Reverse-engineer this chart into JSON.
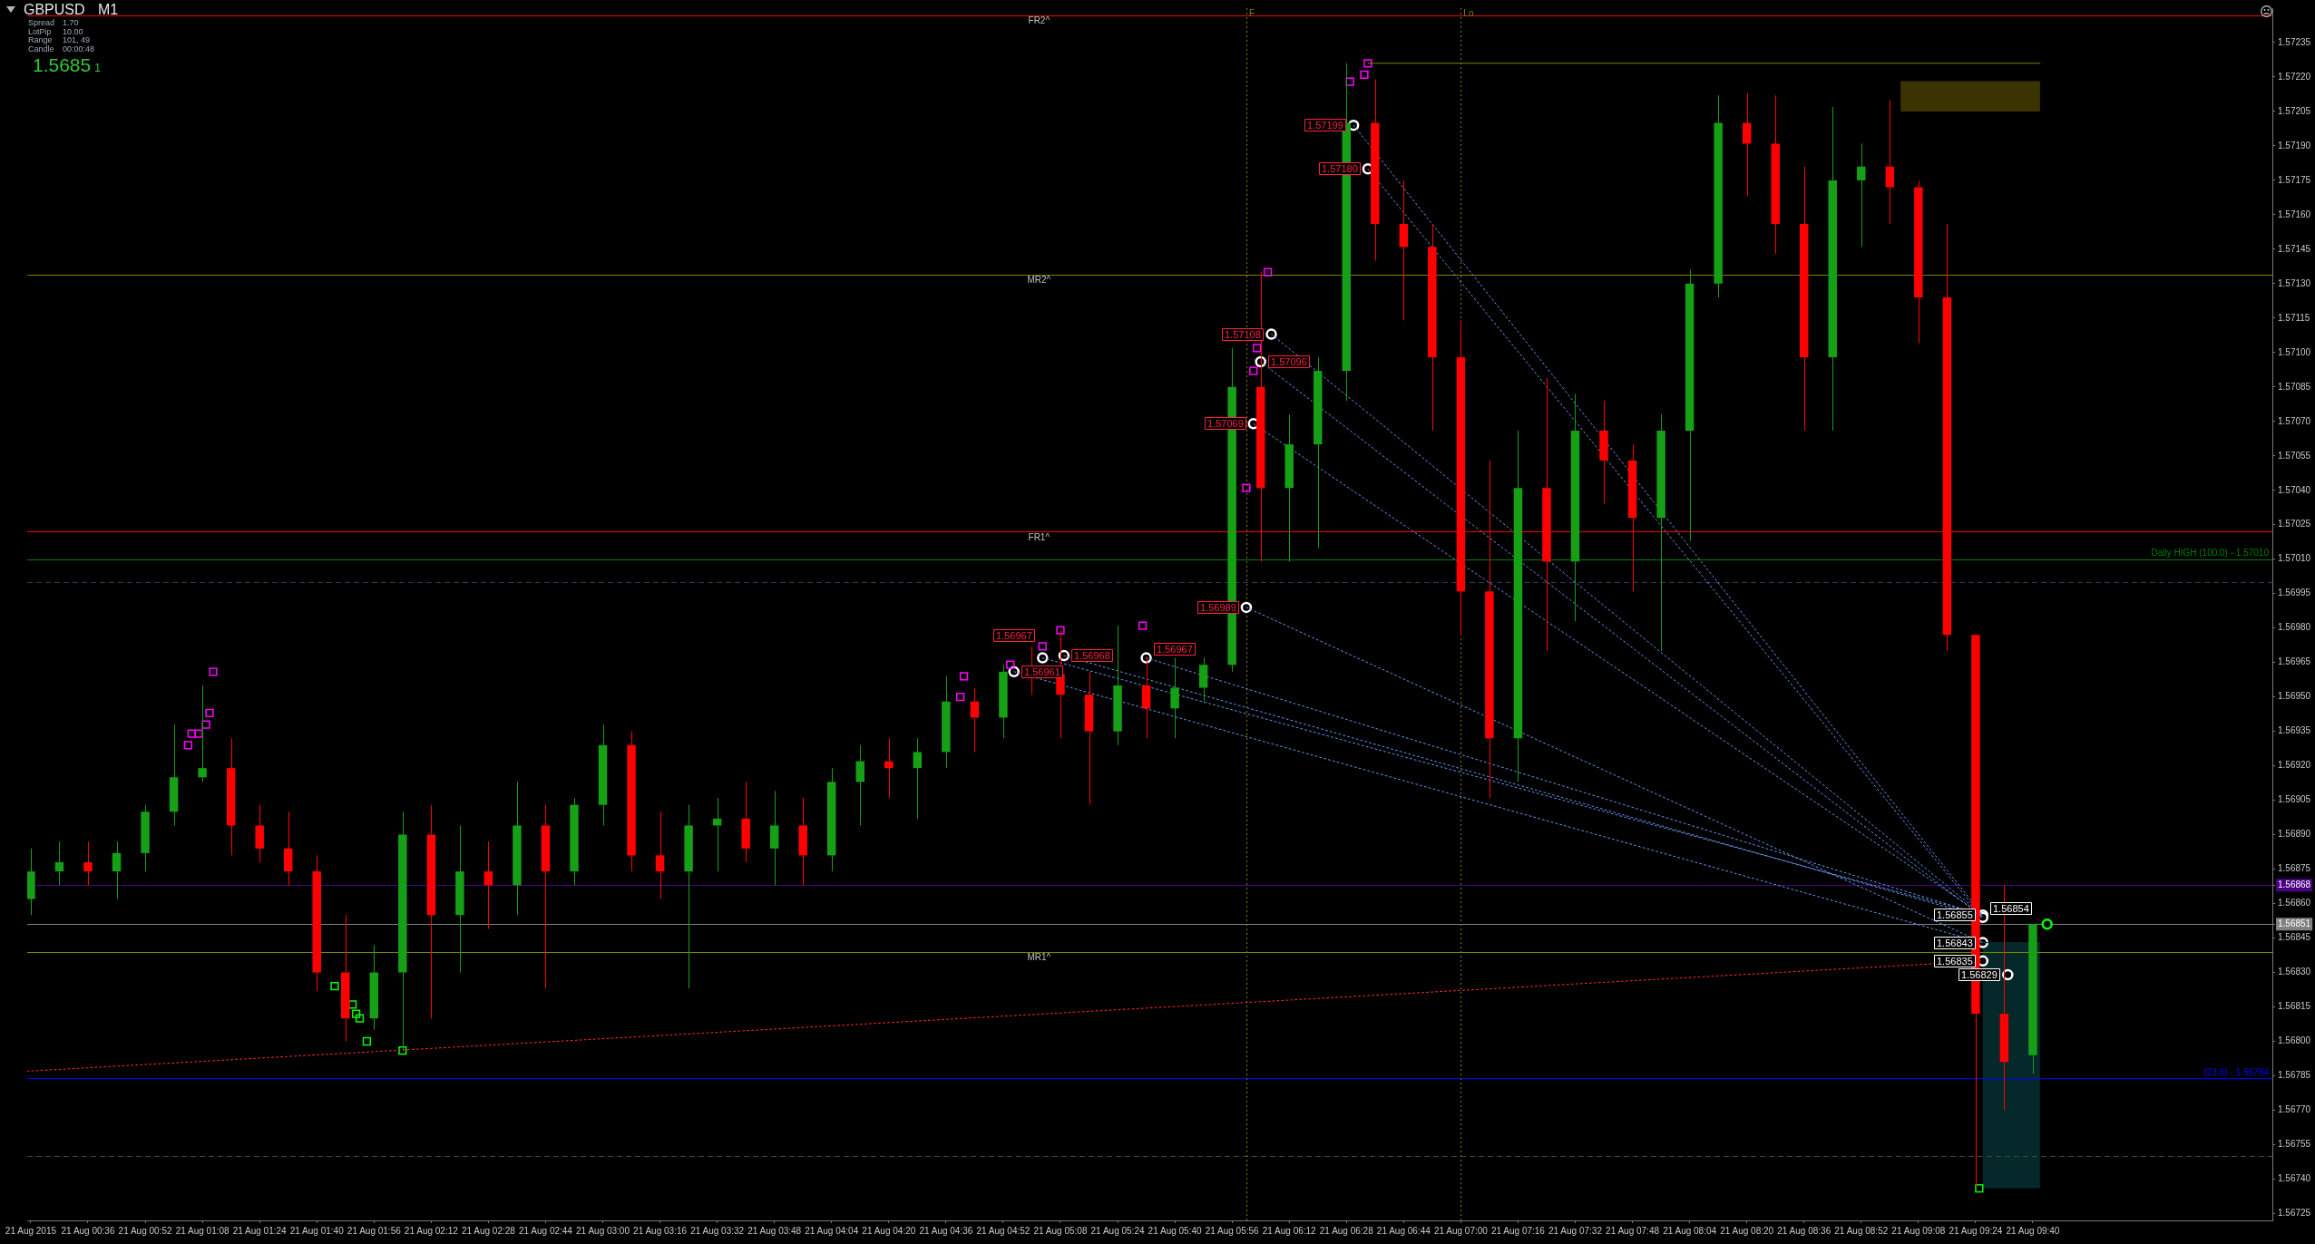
{
  "chart_data": {
    "type": "candlestick",
    "title": "GBPUSD M1",
    "xlim": [
      "2015-08-21T00:19",
      "2015-08-21T10:47"
    ],
    "xticks": [
      {
        "value": "2015-08-21T00:20",
        "label": "21 Aug 2015"
      },
      {
        "value": "2015-08-21T00:36",
        "label": "21 Aug 00:36"
      },
      {
        "value": "2015-08-21T00:52",
        "label": "21 Aug 00:52"
      },
      {
        "value": "2015-08-21T01:08",
        "label": "21 Aug 01:08"
      },
      {
        "value": "2015-08-21T01:24",
        "label": "21 Aug 01:24"
      },
      {
        "value": "2015-08-21T01:40",
        "label": "21 Aug 01:40"
      },
      {
        "value": "2015-08-21T01:56",
        "label": "21 Aug 01:56"
      },
      {
        "value": "2015-08-21T02:12",
        "label": "21 Aug 02:12"
      },
      {
        "value": "2015-08-21T02:28",
        "label": "21 Aug 02:28"
      },
      {
        "value": "2015-08-21T02:44",
        "label": "21 Aug 02:44"
      },
      {
        "value": "2015-08-21T03:00",
        "label": "21 Aug 03:00"
      },
      {
        "value": "2015-08-21T03:16",
        "label": "21 Aug 03:16"
      },
      {
        "value": "2015-08-21T03:32",
        "label": "21 Aug 03:32"
      },
      {
        "value": "2015-08-21T03:48",
        "label": "21 Aug 03:48"
      },
      {
        "value": "2015-08-21T04:04",
        "label": "21 Aug 04:04"
      },
      {
        "value": "2015-08-21T04:20",
        "label": "21 Aug 04:20"
      },
      {
        "value": "2015-08-21T04:36",
        "label": "21 Aug 04:36"
      },
      {
        "value": "2015-08-21T04:52",
        "label": "21 Aug 04:52"
      },
      {
        "value": "2015-08-21T05:08",
        "label": "21 Aug 05:08"
      },
      {
        "value": "2015-08-21T05:24",
        "label": "21 Aug 05:24"
      },
      {
        "value": "2015-08-21T05:40",
        "label": "21 Aug 05:40"
      },
      {
        "value": "2015-08-21T05:56",
        "label": "21 Aug 05:56"
      },
      {
        "value": "2015-08-21T06:12",
        "label": "21 Aug 06:12"
      },
      {
        "value": "2015-08-21T06:28",
        "label": "21 Aug 06:28"
      },
      {
        "value": "2015-08-21T06:44",
        "label": "21 Aug 06:44"
      },
      {
        "value": "2015-08-21T07:00",
        "label": "21 Aug 07:00"
      },
      {
        "value": "2015-08-21T07:16",
        "label": "21 Aug 07:16"
      },
      {
        "value": "2015-08-21T07:32",
        "label": "21 Aug 07:32"
      },
      {
        "value": "2015-08-21T07:48",
        "label": "21 Aug 07:48"
      },
      {
        "value": "2015-08-21T08:04",
        "label": "21 Aug 08:04"
      },
      {
        "value": "2015-08-21T08:20",
        "label": "21 Aug 08:20"
      },
      {
        "value": "2015-08-21T08:36",
        "label": "21 Aug 08:36"
      },
      {
        "value": "2015-08-21T08:52",
        "label": "21 Aug 08:52"
      },
      {
        "value": "2015-08-21T09:08",
        "label": "21 Aug 09:08"
      },
      {
        "value": "2015-08-21T09:24",
        "label": "21 Aug 09:24"
      },
      {
        "value": "2015-08-21T09:40",
        "label": "21 Aug 09:40"
      }
    ],
    "ylim": [
      1.56722,
      1.5725
    ],
    "yticks": [
      1.56725,
      {
        "value": 1.5674,
        "label": "1.56740"
      },
      1.56755,
      {
        "value": 1.5677,
        "label": "1.56770"
      },
      1.56785,
      {
        "value": 1.568,
        "label": "1.56800"
      },
      1.56815,
      {
        "value": 1.5683,
        "label": "1.56830"
      },
      1.56845,
      1.56851,
      {
        "value": 1.5686,
        "label": "1.56860"
      },
      1.56868,
      1.56875,
      {
        "value": 1.5689,
        "label": "1.56890"
      },
      1.56905,
      {
        "value": 1.5692,
        "label": "1.56920"
      },
      1.56935,
      {
        "value": 1.5695,
        "label": "1.56950"
      },
      1.56965,
      {
        "value": 1.5698,
        "label": "1.56980"
      },
      1.56995,
      {
        "value": 1.5701,
        "label": "1.57010"
      },
      1.57025,
      {
        "value": 1.5704,
        "label": "1.57040"
      },
      1.57055,
      {
        "value": 1.5707,
        "label": "1.57070"
      },
      1.57085,
      {
        "value": 1.571,
        "label": "1.57100"
      },
      1.57115,
      {
        "value": 1.5713,
        "label": "1.57130"
      },
      1.57145,
      {
        "value": 1.5716,
        "label": "1.57160"
      },
      1.57175,
      {
        "value": 1.5719,
        "label": "1.57190"
      },
      1.57205,
      {
        "value": 1.5722,
        "label": "1.57220"
      },
      1.57235
    ],
    "series": [
      {
        "type": "line",
        "color": "#3c3400",
        "x": [
          "2015-08-21T09:03",
          "2015-08-21T09:42"
        ],
        "values": [
          1.57218,
          1.57218
        ],
        "lower": [
          1.57205,
          1.57205
        ],
        "upper": [
          1.57218,
          1.57218
        ]
      },
      {
        "type": "line",
        "color": "#05282a",
        "x": [
          "2015-08-21T09:26",
          "2015-08-21T09:42"
        ],
        "values": [
          1.56843,
          1.56843
        ],
        "lower": [
          1.56736,
          1.56736
        ],
        "upper": [
          1.56843,
          1.56843
        ]
      },
      {
        "x": [
          "2015-08-21T00:20",
          "2015-08-21T00:28",
          "2015-08-21T00:36",
          "2015-08-21T00:44",
          "2015-08-21T00:52",
          "2015-08-21T01:00",
          "2015-08-21T01:08",
          "2015-08-21T01:16",
          "2015-08-21T01:24",
          "2015-08-21T01:32",
          "2015-08-21T01:40",
          "2015-08-21T01:48",
          "2015-08-21T01:56",
          "2015-08-21T02:04",
          "2015-08-21T02:12",
          "2015-08-21T02:20",
          "2015-08-21T02:28",
          "2015-08-21T02:36",
          "2015-08-21T02:44",
          "2015-08-21T02:52",
          "2015-08-21T03:00",
          "2015-08-21T03:08",
          "2015-08-21T03:16",
          "2015-08-21T03:24",
          "2015-08-21T03:32",
          "2015-08-21T03:40",
          "2015-08-21T03:48",
          "2015-08-21T03:56",
          "2015-08-21T04:04",
          "2015-08-21T04:12",
          "2015-08-21T04:20",
          "2015-08-21T04:28",
          "2015-08-21T04:36",
          "2015-08-21T04:44",
          "2015-08-21T04:52",
          "2015-08-21T05:00",
          "2015-08-21T05:08",
          "2015-08-21T05:16",
          "2015-08-21T05:24",
          "2015-08-21T05:32",
          "2015-08-21T05:40",
          "2015-08-21T05:48",
          "2015-08-21T05:56",
          "2015-08-21T06:04",
          "2015-08-21T06:12",
          "2015-08-21T06:20",
          "2015-08-21T06:28",
          "2015-08-21T06:36",
          "2015-08-21T06:44",
          "2015-08-21T06:52",
          "2015-08-21T07:00",
          "2015-08-21T07:08",
          "2015-08-21T07:16",
          "2015-08-21T07:24",
          "2015-08-21T07:32",
          "2015-08-21T07:40",
          "2015-08-21T07:48",
          "2015-08-21T07:56",
          "2015-08-21T08:04",
          "2015-08-21T08:12",
          "2015-08-21T08:20",
          "2015-08-21T08:28",
          "2015-08-21T08:36",
          "2015-08-21T08:44",
          "2015-08-21T08:52",
          "2015-08-21T09:00",
          "2015-08-21T09:08",
          "2015-08-21T09:16",
          "2015-08-21T09:24",
          "2015-08-21T09:32",
          "2015-08-21T09:40"
        ],
        "ohlc": [
          [
            1.56862,
            1.56884,
            1.56855,
            1.56874
          ],
          [
            1.56874,
            1.56887,
            1.56868,
            1.56878
          ],
          [
            1.56878,
            1.56887,
            1.56868,
            1.56874
          ],
          [
            1.56874,
            1.56887,
            1.56862,
            1.56882
          ],
          [
            1.56882,
            1.56903,
            1.56874,
            1.569
          ],
          [
            1.569,
            1.56938,
            1.56894,
            1.56915
          ],
          [
            1.56915,
            1.56955,
            1.56913,
            1.56919
          ],
          [
            1.56919,
            1.56932,
            1.56881,
            1.56894
          ],
          [
            1.56894,
            1.56903,
            1.56878,
            1.56884
          ],
          [
            1.56884,
            1.569,
            1.56868,
            1.56874
          ],
          [
            1.56874,
            1.56881,
            1.56822,
            1.5683
          ],
          [
            1.5683,
            1.56855,
            1.568,
            1.5681
          ],
          [
            1.5681,
            1.56842,
            1.56805,
            1.5683
          ],
          [
            1.5683,
            1.569,
            1.56796,
            1.5689
          ],
          [
            1.5689,
            1.56903,
            1.5681,
            1.56855
          ],
          [
            1.56855,
            1.56894,
            1.5683,
            1.56874
          ],
          [
            1.56874,
            1.56887,
            1.56849,
            1.56868
          ],
          [
            1.56868,
            1.56913,
            1.56855,
            1.56894
          ],
          [
            1.56894,
            1.56903,
            1.56823,
            1.56874
          ],
          [
            1.56874,
            1.56906,
            1.56868,
            1.56903
          ],
          [
            1.56903,
            1.56938,
            1.56894,
            1.56929
          ],
          [
            1.56929,
            1.56935,
            1.56874,
            1.56881
          ],
          [
            1.56881,
            1.569,
            1.56862,
            1.56874
          ],
          [
            1.56874,
            1.56903,
            1.56823,
            1.56894
          ],
          [
            1.56894,
            1.56906,
            1.56874,
            1.56897
          ],
          [
            1.56897,
            1.56913,
            1.56878,
            1.56884
          ],
          [
            1.56884,
            1.56909,
            1.56868,
            1.56894
          ],
          [
            1.56894,
            1.56906,
            1.56868,
            1.56881
          ],
          [
            1.56881,
            1.56919,
            1.56874,
            1.56913
          ],
          [
            1.56913,
            1.56929,
            1.56894,
            1.56922
          ],
          [
            1.56922,
            1.56932,
            1.56906,
            1.56919
          ],
          [
            1.56919,
            1.56932,
            1.56897,
            1.56926
          ],
          [
            1.56926,
            1.56959,
            1.56919,
            1.56948
          ],
          [
            1.56948,
            1.56954,
            1.56926,
            1.56941
          ],
          [
            1.56941,
            1.56964,
            1.56932,
            1.56961
          ],
          [
            1.56961,
            1.56972,
            1.56951,
            1.5696
          ],
          [
            1.5696,
            1.56979,
            1.56932,
            1.56951
          ],
          [
            1.56951,
            1.56961,
            1.56903,
            1.56935
          ],
          [
            1.56935,
            1.56981,
            1.56929,
            1.56955
          ],
          [
            1.56955,
            1.56967,
            1.56932,
            1.56945
          ],
          [
            1.56945,
            1.56967,
            1.56932,
            1.56954
          ],
          [
            1.56954,
            1.56967,
            1.56948,
            1.56964
          ],
          [
            1.56964,
            1.57102,
            1.56961,
            1.57085
          ],
          [
            1.57085,
            1.57135,
            1.57009,
            1.57041
          ],
          [
            1.57041,
            1.57073,
            1.57009,
            1.5706
          ],
          [
            1.5706,
            1.57098,
            1.57015,
            1.57092
          ],
          [
            1.57092,
            1.57226,
            1.57079,
            1.572
          ],
          [
            1.572,
            1.57219,
            1.5714,
            1.57156
          ],
          [
            1.57156,
            1.57175,
            1.57114,
            1.57146
          ],
          [
            1.57146,
            1.57156,
            1.57066,
            1.57098
          ],
          [
            1.57098,
            1.57114,
            1.56977,
            1.56996
          ],
          [
            1.56996,
            1.57053,
            1.56906,
            1.56932
          ],
          [
            1.56932,
            1.57066,
            1.56913,
            1.57041
          ],
          [
            1.57041,
            1.57089,
            1.5697,
            1.57009
          ],
          [
            1.57009,
            1.57082,
            1.56983,
            1.57066
          ],
          [
            1.57066,
            1.57079,
            1.57034,
            1.57053
          ],
          [
            1.57053,
            1.5706,
            1.56996,
            1.57028
          ],
          [
            1.57028,
            1.57073,
            1.5697,
            1.57066
          ],
          [
            1.57066,
            1.57136,
            1.57018,
            1.5713
          ],
          [
            1.5713,
            1.57212,
            1.57124,
            1.572
          ],
          [
            1.572,
            1.57213,
            1.57168,
            1.57191
          ],
          [
            1.57191,
            1.57212,
            1.57143,
            1.57156
          ],
          [
            1.57156,
            1.57181,
            1.57066,
            1.57098
          ],
          [
            1.57098,
            1.57207,
            1.57066,
            1.57175
          ],
          [
            1.57175,
            1.57191,
            1.57146,
            1.57181
          ],
          [
            1.57181,
            1.5721,
            1.57156,
            1.57172
          ],
          [
            1.57172,
            1.57175,
            1.57104,
            1.57124
          ],
          [
            1.57124,
            1.57156,
            1.5697,
            1.56977
          ],
          [
            1.56977,
            1.56977,
            1.56737,
            1.56812
          ],
          [
            1.56812,
            1.56868,
            1.5677,
            1.56791
          ],
          [
            1.56794,
            1.56851,
            1.56786,
            1.56851
          ]
        ],
        "colors": [
          "#16a016",
          "#16a016",
          "#ff0000",
          "#16a016",
          "#16a016",
          "#16a016",
          "#16a016",
          "#ff0000",
          "#ff0000",
          "#ff0000",
          "#ff0000",
          "#ff0000",
          "#16a016",
          "#16a016",
          "#ff0000",
          "#16a016",
          "#ff0000",
          "#16a016",
          "#ff0000",
          "#16a016",
          "#16a016",
          "#ff0000",
          "#ff0000",
          "#16a016",
          "#16a016",
          "#ff0000",
          "#16a016",
          "#ff0000",
          "#16a016",
          "#16a016",
          "#ff0000",
          "#16a016",
          "#16a016",
          "#ff0000",
          "#16a016",
          "#ff0000",
          "#ff0000",
          "#ff0000",
          "#16a016",
          "#ff0000",
          "#16a016",
          "#16a016",
          "#16a016",
          "#ff0000",
          "#16a016",
          "#16a016",
          "#16a016",
          "#ff0000",
          "#ff0000",
          "#ff0000",
          "#ff0000",
          "#ff0000",
          "#16a016",
          "#ff0000",
          "#16a016",
          "#ff0000",
          "#ff0000",
          "#16a016",
          "#16a016",
          "#16a016",
          "#ff0000",
          "#ff0000",
          "#ff0000",
          "#16a016",
          "#16a016",
          "#ff0000",
          "#ff0000",
          "#ff0000",
          "#ff0000",
          "#ff0000",
          "#16a016"
        ]
      },
      {
        "type": "line",
        "color": "#808000",
        "x": [
          "2015-08-21T06:34",
          "2015-08-21T09:42"
        ],
        "values": [
          1.57226,
          1.57226
        ]
      },
      {
        "type": "line",
        "line_style": "dotted",
        "color": "#ff2a2a",
        "x": [
          "2015-08-21T00:19",
          "2015-08-21T09:26"
        ],
        "values": [
          1.56787,
          1.56835
        ]
      },
      {
        "type": "line",
        "line_style": "dotted",
        "color": "#6495ed",
        "x": [
          "2015-08-21T06:30",
          "2015-08-21T09:26"
        ],
        "values": [
          1.57199,
          1.56855
        ]
      },
      {
        "type": "line",
        "line_style": "dotted",
        "color": "#6495ed",
        "x": [
          "2015-08-21T06:34",
          "2015-08-21T09:26"
        ],
        "values": [
          1.5718,
          1.56854
        ]
      },
      {
        "type": "line",
        "line_style": "dotted",
        "color": "#6495ed",
        "x": [
          "2015-08-21T06:07",
          "2015-08-21T09:26"
        ],
        "values": [
          1.57108,
          1.56855
        ]
      },
      {
        "type": "line",
        "line_style": "dotted",
        "color": "#6495ed",
        "x": [
          "2015-08-21T06:04",
          "2015-08-21T09:26"
        ],
        "values": [
          1.57096,
          1.56854
        ]
      },
      {
        "type": "line",
        "line_style": "dotted",
        "color": "#6495ed",
        "x": [
          "2015-08-21T06:02",
          "2015-08-21T09:26"
        ],
        "values": [
          1.57069,
          1.56855
        ]
      },
      {
        "type": "line",
        "line_style": "dotted",
        "color": "#6495ed",
        "x": [
          "2015-08-21T06:00",
          "2015-08-21T09:26"
        ],
        "values": [
          1.56989,
          1.56843
        ]
      },
      {
        "type": "line",
        "line_style": "dotted",
        "color": "#6495ed",
        "x": [
          "2015-08-21T05:32",
          "2015-08-21T09:26"
        ],
        "values": [
          1.56967,
          1.56855
        ]
      },
      {
        "type": "line",
        "line_style": "dotted",
        "color": "#6495ed",
        "x": [
          "2015-08-21T05:09",
          "2015-08-21T09:26"
        ],
        "values": [
          1.56968,
          1.56854
        ]
      },
      {
        "type": "line",
        "line_style": "dotted",
        "color": "#6495ed",
        "x": [
          "2015-08-21T05:03",
          "2015-08-21T09:26"
        ],
        "values": [
          1.56967,
          1.56855
        ]
      },
      {
        "type": "line",
        "line_style": "dotted",
        "color": "#6495ed",
        "x": [
          "2015-08-21T04:55",
          "2015-08-21T09:26"
        ],
        "values": [
          1.56961,
          1.56843
        ]
      },
      {
        "type": "scatter",
        "marker": "square",
        "color": "#ff00ff",
        "x": [
          "2015-08-21T01:04",
          "2015-08-21T01:05",
          "2015-08-21T01:07",
          "2015-08-21T01:09",
          "2015-08-21T01:10",
          "2015-08-21T01:11",
          "2015-08-21T04:40",
          "2015-08-21T04:41",
          "2015-08-21T04:54",
          "2015-08-21T05:03",
          "2015-08-21T05:08",
          "2015-08-21T05:31",
          "2015-08-21T06:00",
          "2015-08-21T06:02",
          "2015-08-21T06:03",
          "2015-08-21T06:06",
          "2015-08-21T06:29",
          "2015-08-21T06:33",
          "2015-08-21T06:34"
        ],
        "values": [
          1.56929,
          1.56934,
          1.56934,
          1.56938,
          1.56943,
          1.56961,
          1.5695,
          1.56959,
          1.56964,
          1.56972,
          1.56979,
          1.56981,
          1.57041,
          1.57092,
          1.57102,
          1.57135,
          1.57218,
          1.57221,
          1.57226
        ]
      },
      {
        "type": "scatter",
        "marker": "square",
        "color": "#00ff00",
        "x": [
          "2015-08-21T01:45",
          "2015-08-21T01:50",
          "2015-08-21T01:51",
          "2015-08-21T01:52",
          "2015-08-21T01:54",
          "2015-08-21T02:04",
          "2015-08-21T09:25"
        ],
        "values": [
          1.56824,
          1.56816,
          1.56812,
          1.5681,
          1.568,
          1.56796,
          1.56736
        ]
      },
      {
        "type": "scatter",
        "marker": "circle",
        "color": "#ffffff",
        "x": [
          "2015-08-21T04:55",
          "2015-08-21T05:03",
          "2015-08-21T05:09",
          "2015-08-21T05:32",
          "2015-08-21T06:00",
          "2015-08-21T06:02",
          "2015-08-21T06:04",
          "2015-08-21T06:07",
          "2015-08-21T06:30",
          "2015-08-21T06:34",
          "2015-08-21T09:26",
          "2015-08-21T09:26",
          "2015-08-21T09:26",
          "2015-08-21T09:26",
          "2015-08-21T09:33"
        ],
        "values": [
          1.56961,
          1.56967,
          1.56968,
          1.56967,
          1.56989,
          1.57069,
          1.57096,
          1.57108,
          1.57199,
          1.5718,
          1.56855,
          1.56854,
          1.56843,
          1.56835,
          1.56829
        ],
        "value_labels": [
          "1.56961",
          "1.56967",
          "1.56968",
          "1.56967",
          "1.56989",
          "1.57069",
          "1.57096",
          "1.57108",
          "1.57199",
          "1.57180",
          "1.56855",
          "1.56854",
          "1.56843",
          "1.56835",
          "1.56829"
        ]
      },
      {
        "type": "scatter",
        "marker": "circle",
        "color": "#00ff00",
        "x": [
          "2015-08-21T09:44"
        ],
        "values": [
          1.56851
        ]
      }
    ],
    "ref_lines": [
      {
        "axis": "y",
        "value": 1.57247,
        "color": "#ff0000"
      },
      {
        "axis": "y",
        "value": 1.57134,
        "color": "#808000"
      },
      {
        "axis": "y",
        "value": 1.57022,
        "color": "#ff0000"
      },
      {
        "axis": "y",
        "value": 1.5701,
        "color": "#008000",
        "label": "Daily HIGH (100.0) - 1.57010"
      },
      {
        "axis": "y",
        "value": 1.57,
        "color": "#303a5c",
        "line_style": "dashed"
      },
      {
        "axis": "y",
        "value": 1.56868,
        "color": "#4b0082"
      },
      {
        "axis": "y",
        "value": 1.56851,
        "color": "#808080"
      },
      {
        "axis": "y",
        "value": 1.56839,
        "color": "#808000"
      },
      {
        "axis": "y",
        "value": 1.56784,
        "color": "#0000ff",
        "label": "1.56784"
      },
      {
        "axis": "y",
        "value": 1.5675,
        "color": "#404040",
        "line_style": "dashed"
      },
      {
        "axis": "x",
        "value": "2015-08-21T06:00",
        "color": "#808000",
        "line_style": "dotted",
        "label": "F"
      },
      {
        "axis": "x",
        "value": "2015-08-21T07:00",
        "color": "#808000",
        "line_style": "dotted",
        "label": "Lo"
      }
    ],
    "annotations": [
      "Spread",
      "1.70",
      "LotPip",
      "10.00",
      "Range",
      "101, 49",
      "Candle",
      "00:00:48",
      "1.5685",
      "1",
      {
        "text": "FR2^",
        "x": "2015-08-21T05:02",
        "y": 1.57247
      },
      {
        "text": "MR2^",
        "x": "2015-08-21T05:02",
        "y": 1.57134
      },
      {
        "text": "FR1^",
        "x": "2015-08-21T05:02",
        "y": 1.57022
      },
      {
        "text": "MR1^",
        "x": "2015-08-21T05:02",
        "y": 1.56839
      },
      {
        "text": "(23.6) -",
        "x": "2015-08-21T10:36",
        "y": 1.56784
      }
    ]
  }
}
